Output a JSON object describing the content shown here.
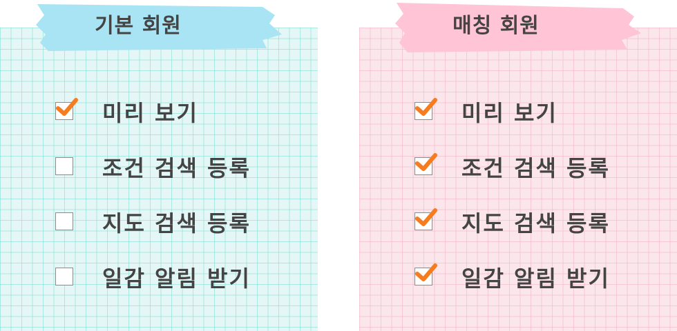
{
  "colors": {
    "basic_tape": "#a8e4f4",
    "matching_tape": "#ffc4d6",
    "check": "#f57c1f",
    "text": "#444444"
  },
  "plans": [
    {
      "title": "기본 회원",
      "features": [
        {
          "label": "미리 보기",
          "checked": true
        },
        {
          "label": "조건 검색 등록",
          "checked": false
        },
        {
          "label": "지도 검색 등록",
          "checked": false
        },
        {
          "label": "일감 알림 받기",
          "checked": false
        }
      ]
    },
    {
      "title": "매칭 회원",
      "features": [
        {
          "label": "미리 보기",
          "checked": true
        },
        {
          "label": "조건 검색 등록",
          "checked": true
        },
        {
          "label": "지도 검색 등록",
          "checked": true
        },
        {
          "label": "일감 알림 받기",
          "checked": true
        }
      ]
    }
  ]
}
